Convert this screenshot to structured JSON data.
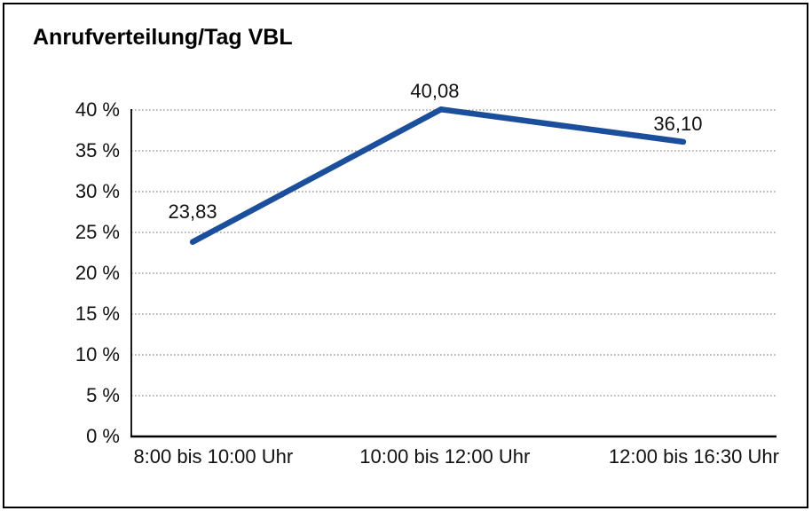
{
  "header": {
    "title": "Anrufverteilung/Tag VBL"
  },
  "chart_data": {
    "type": "line",
    "title": "Anrufverteilung/Tag VBL",
    "categories": [
      "8:00 bis 10:00 Uhr",
      "10:00 bis 12:00 Uhr",
      "12:00 bis 16:30 Uhr"
    ],
    "values": [
      23.83,
      40.08,
      36.1
    ],
    "value_labels": [
      "23,83",
      "40,08",
      "36,10"
    ],
    "xlabel": "",
    "ylabel": "",
    "ylim": [
      0,
      40
    ],
    "ytick_step": 5,
    "ytick_labels": [
      "0 %",
      "5 %",
      "10 %",
      "15 %",
      "20 %",
      "25 %",
      "30 %",
      "35 %",
      "40 %"
    ],
    "grid": "horizontal-dotted",
    "legend": "none",
    "markers": "none"
  },
  "colors": {
    "line": "#1B4F9B",
    "grid": "#8C8C8C",
    "axis": "#000000",
    "frame_border": "#000000",
    "background": "#FFFFFF",
    "text": "#111111"
  }
}
